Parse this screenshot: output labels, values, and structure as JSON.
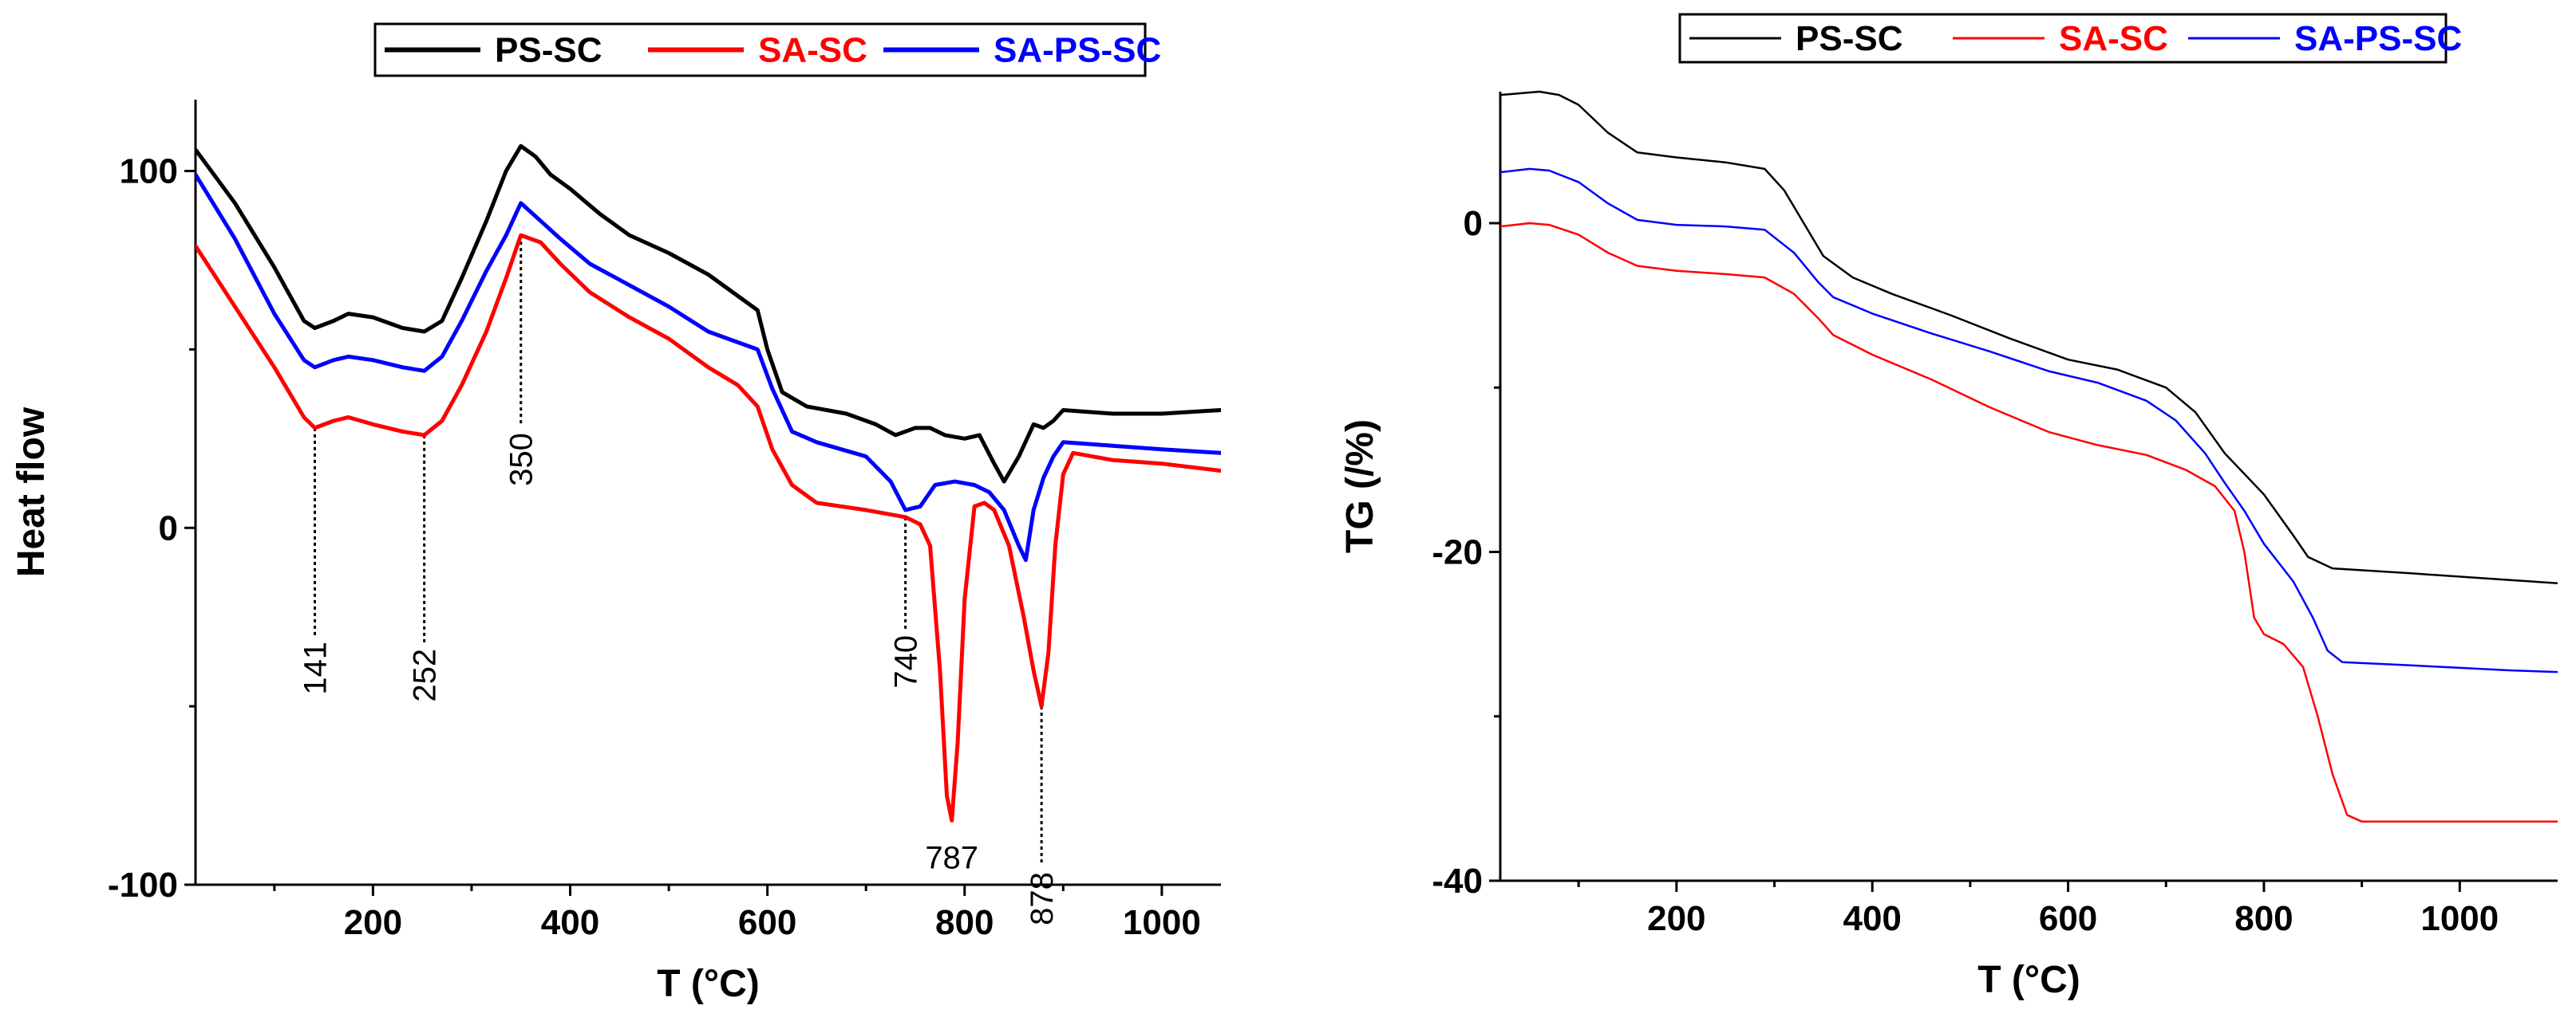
{
  "chart_data": [
    {
      "type": "line",
      "title": "",
      "xlabel": "T (°C)",
      "ylabel": "Heat flow",
      "xlim": [
        20,
        1060
      ],
      "ylim": [
        -100,
        120
      ],
      "xticks": [
        "200",
        "400",
        "600",
        "800",
        "1000"
      ],
      "yticks": [
        "-100",
        "0",
        "100"
      ],
      "legend": {
        "placement": "top",
        "entries": [
          "PS-SC",
          "SA-SC",
          "SA-PS-SC"
        ]
      },
      "series": [
        {
          "name": "PS-SC",
          "color": "#000000",
          "points": [
            [
              20,
              106
            ],
            [
              60,
              91
            ],
            [
              100,
              73
            ],
            [
              130,
              58
            ],
            [
              141,
              56
            ],
            [
              160,
              58
            ],
            [
              175,
              60
            ],
            [
              200,
              59
            ],
            [
              230,
              56
            ],
            [
              252,
              55
            ],
            [
              270,
              58
            ],
            [
              290,
              70
            ],
            [
              315,
              86
            ],
            [
              335,
              100
            ],
            [
              350,
              107
            ],
            [
              365,
              104
            ],
            [
              380,
              99
            ],
            [
              400,
              95
            ],
            [
              430,
              88
            ],
            [
              460,
              82
            ],
            [
              500,
              77
            ],
            [
              540,
              71
            ],
            [
              570,
              65
            ],
            [
              590,
              61
            ],
            [
              600,
              50
            ],
            [
              615,
              38
            ],
            [
              640,
              34
            ],
            [
              680,
              32
            ],
            [
              710,
              29
            ],
            [
              730,
              26
            ],
            [
              750,
              28
            ],
            [
              765,
              28
            ],
            [
              780,
              26
            ],
            [
              800,
              25
            ],
            [
              815,
              26
            ],
            [
              830,
              18
            ],
            [
              840,
              13
            ],
            [
              855,
              20
            ],
            [
              870,
              29
            ],
            [
              880,
              28
            ],
            [
              890,
              30
            ],
            [
              900,
              33
            ],
            [
              950,
              32
            ],
            [
              1000,
              32
            ],
            [
              1060,
              33
            ]
          ]
        },
        {
          "name": "SA-SC",
          "color": "#ff0000",
          "points": [
            [
              20,
              79
            ],
            [
              60,
              62
            ],
            [
              100,
              45
            ],
            [
              130,
              31
            ],
            [
              141,
              28
            ],
            [
              160,
              30
            ],
            [
              175,
              31
            ],
            [
              200,
              29
            ],
            [
              230,
              27
            ],
            [
              252,
              26
            ],
            [
              270,
              30
            ],
            [
              290,
              40
            ],
            [
              315,
              55
            ],
            [
              335,
              70
            ],
            [
              350,
              82
            ],
            [
              370,
              80
            ],
            [
              390,
              74
            ],
            [
              420,
              66
            ],
            [
              460,
              59
            ],
            [
              500,
              53
            ],
            [
              540,
              45
            ],
            [
              570,
              40
            ],
            [
              590,
              34
            ],
            [
              605,
              22
            ],
            [
              625,
              12
            ],
            [
              650,
              7
            ],
            [
              700,
              5
            ],
            [
              740,
              3
            ],
            [
              755,
              1
            ],
            [
              765,
              -5
            ],
            [
              775,
              -40
            ],
            [
              782,
              -75
            ],
            [
              787,
              -82
            ],
            [
              793,
              -60
            ],
            [
              800,
              -20
            ],
            [
              810,
              6
            ],
            [
              820,
              7
            ],
            [
              830,
              5
            ],
            [
              845,
              -5
            ],
            [
              860,
              -25
            ],
            [
              870,
              -40
            ],
            [
              878,
              -50
            ],
            [
              885,
              -35
            ],
            [
              892,
              -5
            ],
            [
              900,
              15
            ],
            [
              910,
              21
            ],
            [
              950,
              19
            ],
            [
              1000,
              18
            ],
            [
              1060,
              16
            ]
          ]
        },
        {
          "name": "SA-PS-SC",
          "color": "#0000ff",
          "points": [
            [
              20,
              99
            ],
            [
              60,
              81
            ],
            [
              100,
              60
            ],
            [
              130,
              47
            ],
            [
              141,
              45
            ],
            [
              160,
              47
            ],
            [
              175,
              48
            ],
            [
              200,
              47
            ],
            [
              230,
              45
            ],
            [
              252,
              44
            ],
            [
              270,
              48
            ],
            [
              290,
              58
            ],
            [
              315,
              72
            ],
            [
              335,
              82
            ],
            [
              350,
              91
            ],
            [
              370,
              86
            ],
            [
              390,
              81
            ],
            [
              420,
              74
            ],
            [
              460,
              68
            ],
            [
              500,
              62
            ],
            [
              540,
              55
            ],
            [
              570,
              52
            ],
            [
              590,
              50
            ],
            [
              605,
              39
            ],
            [
              625,
              27
            ],
            [
              650,
              24
            ],
            [
              700,
              20
            ],
            [
              725,
              13
            ],
            [
              740,
              5
            ],
            [
              755,
              6
            ],
            [
              770,
              12
            ],
            [
              790,
              13
            ],
            [
              810,
              12
            ],
            [
              825,
              10
            ],
            [
              840,
              5
            ],
            [
              855,
              -5
            ],
            [
              862,
              -9
            ],
            [
              870,
              5
            ],
            [
              880,
              14
            ],
            [
              890,
              20
            ],
            [
              900,
              24
            ],
            [
              950,
              23
            ],
            [
              1000,
              22
            ],
            [
              1060,
              21
            ]
          ]
        }
      ],
      "annotations": [
        {
          "label": "141",
          "x": 141,
          "y": 28
        },
        {
          "label": "252",
          "x": 252,
          "y": 26
        },
        {
          "label": "350",
          "x": 350,
          "y": 82
        },
        {
          "label": "740",
          "x": 740,
          "y": 3
        },
        {
          "label": "787",
          "x": 787,
          "y": -82
        },
        {
          "label": "878",
          "x": 878,
          "y": -50
        }
      ]
    },
    {
      "type": "line",
      "title": "",
      "xlabel": "T (°C)",
      "ylabel": "TG (/%)",
      "xlim": [
        20,
        1100
      ],
      "ylim": [
        -40,
        8
      ],
      "xticks": [
        "200",
        "400",
        "600",
        "800",
        "1000"
      ],
      "yticks": [
        "-40",
        "-20",
        "0"
      ],
      "legend": {
        "placement": "top",
        "entries": [
          "PS-SC",
          "SA-SC",
          "SA-PS-SC"
        ]
      },
      "series": [
        {
          "name": "PS-SC",
          "color": "#000000",
          "points": [
            [
              20,
              7.8
            ],
            [
              40,
              7.9
            ],
            [
              60,
              8.0
            ],
            [
              80,
              7.8
            ],
            [
              100,
              7.2
            ],
            [
              130,
              5.5
            ],
            [
              160,
              4.3
            ],
            [
              200,
              4.0
            ],
            [
              250,
              3.7
            ],
            [
              290,
              3.3
            ],
            [
              310,
              2.0
            ],
            [
              330,
              0
            ],
            [
              350,
              -2.0
            ],
            [
              380,
              -3.3
            ],
            [
              420,
              -4.3
            ],
            [
              480,
              -5.6
            ],
            [
              540,
              -7.0
            ],
            [
              600,
              -8.3
            ],
            [
              650,
              -8.9
            ],
            [
              700,
              -10.0
            ],
            [
              730,
              -11.5
            ],
            [
              760,
              -14.0
            ],
            [
              800,
              -16.5
            ],
            [
              830,
              -19.0
            ],
            [
              845,
              -20.3
            ],
            [
              870,
              -21.0
            ],
            [
              950,
              -21.3
            ],
            [
              1050,
              -21.7
            ],
            [
              1100,
              -21.9
            ]
          ]
        },
        {
          "name": "SA-SC",
          "color": "#ff0000",
          "points": [
            [
              20,
              -0.2
            ],
            [
              50,
              0
            ],
            [
              70,
              -0.1
            ],
            [
              100,
              -0.7
            ],
            [
              130,
              -1.8
            ],
            [
              160,
              -2.6
            ],
            [
              200,
              -2.9
            ],
            [
              250,
              -3.1
            ],
            [
              290,
              -3.3
            ],
            [
              320,
              -4.3
            ],
            [
              345,
              -5.8
            ],
            [
              360,
              -6.8
            ],
            [
              400,
              -8.0
            ],
            [
              460,
              -9.5
            ],
            [
              520,
              -11.2
            ],
            [
              580,
              -12.7
            ],
            [
              630,
              -13.5
            ],
            [
              680,
              -14.1
            ],
            [
              720,
              -15.0
            ],
            [
              750,
              -16.0
            ],
            [
              770,
              -17.5
            ],
            [
              780,
              -20.0
            ],
            [
              790,
              -24.0
            ],
            [
              800,
              -25.0
            ],
            [
              820,
              -25.6
            ],
            [
              840,
              -27.0
            ],
            [
              855,
              -30.0
            ],
            [
              870,
              -33.5
            ],
            [
              885,
              -36.0
            ],
            [
              900,
              -36.4
            ],
            [
              1000,
              -36.4
            ],
            [
              1100,
              -36.4
            ]
          ]
        },
        {
          "name": "SA-PS-SC",
          "color": "#0000ff",
          "points": [
            [
              20,
              3.1
            ],
            [
              50,
              3.3
            ],
            [
              70,
              3.2
            ],
            [
              100,
              2.5
            ],
            [
              130,
              1.2
            ],
            [
              160,
              0.2
            ],
            [
              200,
              -0.1
            ],
            [
              250,
              -0.2
            ],
            [
              290,
              -0.4
            ],
            [
              320,
              -1.8
            ],
            [
              345,
              -3.6
            ],
            [
              360,
              -4.5
            ],
            [
              400,
              -5.5
            ],
            [
              460,
              -6.7
            ],
            [
              520,
              -7.8
            ],
            [
              580,
              -9.0
            ],
            [
              630,
              -9.7
            ],
            [
              680,
              -10.8
            ],
            [
              710,
              -12.0
            ],
            [
              740,
              -14.0
            ],
            [
              760,
              -15.8
            ],
            [
              780,
              -17.5
            ],
            [
              800,
              -19.5
            ],
            [
              830,
              -21.8
            ],
            [
              850,
              -24.0
            ],
            [
              865,
              -26.0
            ],
            [
              880,
              -26.7
            ],
            [
              950,
              -26.9
            ],
            [
              1050,
              -27.2
            ],
            [
              1100,
              -27.3
            ]
          ]
        }
      ],
      "annotations": []
    }
  ]
}
